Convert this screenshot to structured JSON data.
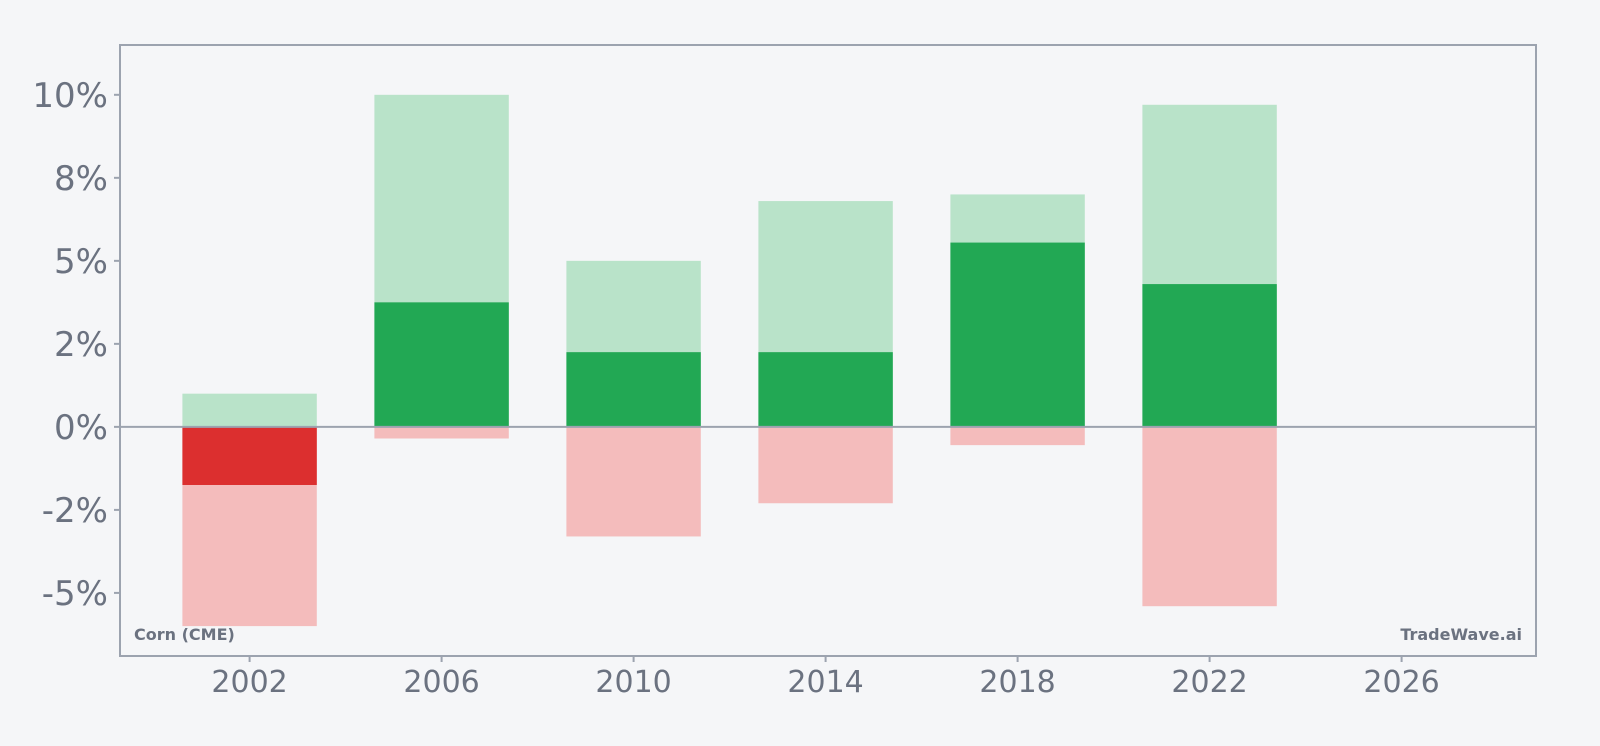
{
  "chart_data": {
    "type": "bar",
    "x": [
      2002,
      2006,
      2010,
      2014,
      2018,
      2022
    ],
    "series": [
      {
        "role": "range-high",
        "values": [
          1.0,
          10.0,
          5.0,
          6.8,
          7.0,
          9.7
        ]
      },
      {
        "role": "range-low",
        "values": [
          -6.0,
          -0.35,
          -3.3,
          -2.3,
          -0.55,
          -5.4
        ]
      },
      {
        "role": "value",
        "values": [
          -1.75,
          3.75,
          2.25,
          2.25,
          5.55,
          4.3
        ]
      }
    ],
    "xticks": [
      2002,
      2006,
      2010,
      2014,
      2018,
      2022,
      2026
    ],
    "xtick_labels": [
      "2002",
      "2006",
      "2010",
      "2014",
      "2018",
      "2022",
      "2026"
    ],
    "yticks": [
      -5,
      -2.5,
      0,
      2.5,
      5,
      7.5,
      10
    ],
    "ytick_labels": [
      "-5%",
      "-2%",
      "0%",
      "2%",
      "5%",
      "8%",
      "10%"
    ],
    "xlim": [
      1999.3,
      2028.8
    ],
    "ylim": [
      -6.9,
      11.5
    ],
    "grid": false,
    "zero_line": true,
    "colors": {
      "positive_value": "#22a854",
      "positive_range": "#b9e3c9",
      "negative_value": "#dc2f2f",
      "negative_range": "#f4bcbc",
      "axis": "#9ca3af",
      "text": "#6b7280"
    }
  },
  "labels": {
    "left": "Corn (CME)",
    "right": "TradeWave.ai"
  }
}
